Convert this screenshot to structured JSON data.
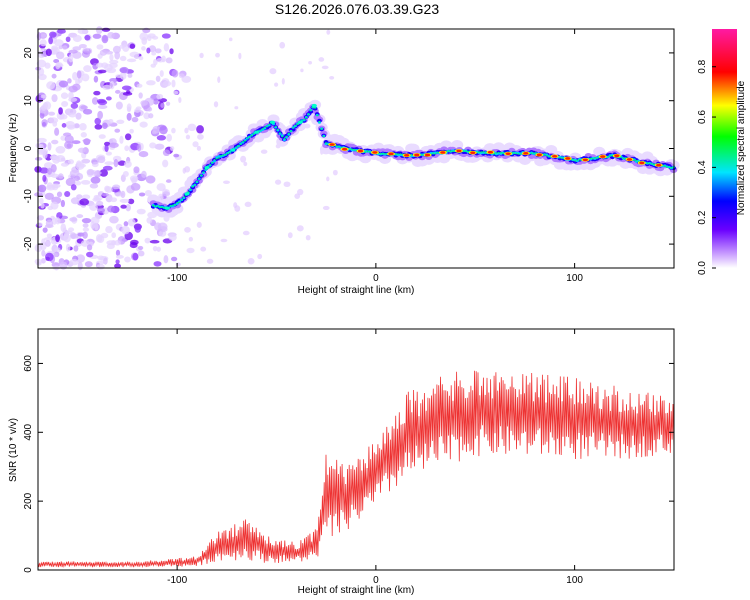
{
  "title": "S126.2026.076.03.39.G23",
  "chart_data": [
    {
      "type": "heatmap",
      "xlabel": "Height of straight line (km)",
      "ylabel": "Frequency (Hz)",
      "xlim": [
        -170,
        150
      ],
      "ylim": [
        -25,
        25
      ],
      "xticks": [
        -100,
        0,
        100
      ],
      "yticks": [
        -20,
        -10,
        0,
        10,
        20
      ],
      "colorbar": {
        "label": "Normalized spectral amplitude",
        "range": [
          0,
          0.95
        ],
        "ticks": [
          "0.0",
          "0.2",
          "0.4",
          "0.6",
          "0.8"
        ]
      },
      "ridge": [
        {
          "x": -112,
          "y": -12
        },
        {
          "x": -105,
          "y": -12.5
        },
        {
          "x": -98,
          "y": -11
        },
        {
          "x": -92,
          "y": -8
        },
        {
          "x": -85,
          "y": -4
        },
        {
          "x": -80,
          "y": -2
        },
        {
          "x": -74,
          "y": -1
        },
        {
          "x": -68,
          "y": 1
        },
        {
          "x": -62,
          "y": 3
        },
        {
          "x": -57,
          "y": 4
        },
        {
          "x": -52,
          "y": 5.5
        },
        {
          "x": -46,
          "y": 2
        },
        {
          "x": -40,
          "y": 5
        },
        {
          "x": -36,
          "y": 6
        },
        {
          "x": -31,
          "y": 9
        },
        {
          "x": -25,
          "y": 1
        },
        {
          "x": -15,
          "y": 0
        },
        {
          "x": 0,
          "y": -1
        },
        {
          "x": 20,
          "y": -1.5
        },
        {
          "x": 40,
          "y": -0.5
        },
        {
          "x": 60,
          "y": -1
        },
        {
          "x": 80,
          "y": -1
        },
        {
          "x": 100,
          "y": -2.5
        },
        {
          "x": 120,
          "y": -1.5
        },
        {
          "x": 135,
          "y": -3
        },
        {
          "x": 150,
          "y": -4
        }
      ]
    },
    {
      "type": "line",
      "xlabel": "Height of straight line (km)",
      "ylabel": "SNR (10 * v/v)",
      "xlim": [
        -170,
        150
      ],
      "ylim": [
        0,
        700
      ],
      "xticks": [
        -100,
        0,
        100
      ],
      "yticks": [
        0,
        200,
        400,
        600
      ],
      "color": "#ee3333",
      "envelope": [
        {
          "x": -170,
          "lo": 8,
          "hi": 25
        },
        {
          "x": -120,
          "lo": 8,
          "hi": 25
        },
        {
          "x": -90,
          "lo": 10,
          "hi": 40
        },
        {
          "x": -80,
          "lo": 25,
          "hi": 110
        },
        {
          "x": -65,
          "lo": 30,
          "hi": 150
        },
        {
          "x": -55,
          "lo": 20,
          "hi": 100
        },
        {
          "x": -40,
          "lo": 20,
          "hi": 80
        },
        {
          "x": -30,
          "lo": 30,
          "hi": 120
        },
        {
          "x": -25,
          "lo": 70,
          "hi": 350
        },
        {
          "x": -15,
          "lo": 110,
          "hi": 300
        },
        {
          "x": 0,
          "lo": 180,
          "hi": 380
        },
        {
          "x": 15,
          "lo": 260,
          "hi": 520
        },
        {
          "x": 30,
          "lo": 290,
          "hi": 560
        },
        {
          "x": 50,
          "lo": 330,
          "hi": 590
        },
        {
          "x": 75,
          "lo": 330,
          "hi": 580
        },
        {
          "x": 100,
          "lo": 320,
          "hi": 560
        },
        {
          "x": 125,
          "lo": 320,
          "hi": 530
        },
        {
          "x": 150,
          "lo": 340,
          "hi": 500
        }
      ]
    }
  ]
}
